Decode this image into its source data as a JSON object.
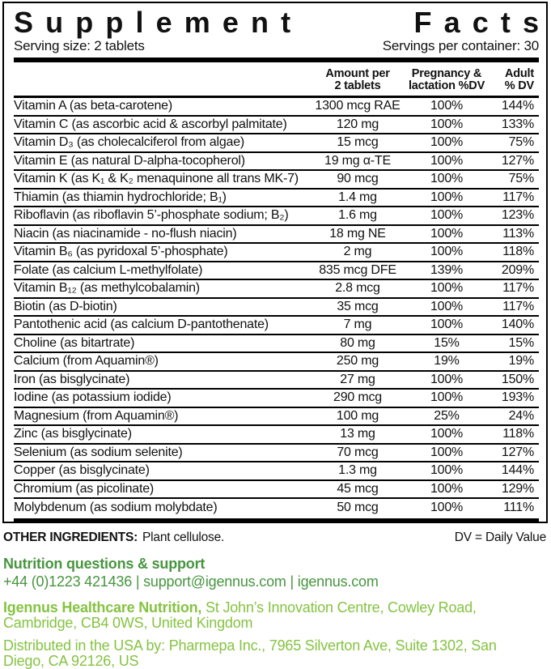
{
  "header": {
    "title_word1": "Supplement",
    "title_word2": "Facts",
    "serving_size": "Serving size: 2 tablets",
    "servings_per_container": "Servings per container: 30"
  },
  "columns": {
    "amount_line1": "Amount per",
    "amount_line2": "2 tablets",
    "pregnancy_line1": "Pregnancy &",
    "pregnancy_line2": "lactation %DV",
    "adult_line1": "Adult",
    "adult_line2": "% DV"
  },
  "rows": [
    {
      "name": "Vitamin A (as beta-carotene)",
      "amount": "1300 mcg RAE",
      "pregnancy_dv": "100%",
      "adult_dv": "144%"
    },
    {
      "name": "Vitamin C (as ascorbic acid & ascorbyl palmitate)",
      "amount": "120 mg",
      "pregnancy_dv": "100%",
      "adult_dv": "133%"
    },
    {
      "name": "Vitamin D₃ (as cholecalciferol from algae)",
      "amount": "15 mcg",
      "pregnancy_dv": "100%",
      "adult_dv": "75%"
    },
    {
      "name": "Vitamin E (as natural D-alpha-tocopherol)",
      "amount": "19 mg α-TE",
      "pregnancy_dv": "100%",
      "adult_dv": "127%"
    },
    {
      "name": "Vitamin K (as K₁ & K₂ menaquinone all trans MK-7)",
      "amount": "90 mcg",
      "pregnancy_dv": "100%",
      "adult_dv": "75%"
    },
    {
      "name": "Thiamin (as thiamin hydrochloride; B₁)",
      "amount": "1.4 mg",
      "pregnancy_dv": "100%",
      "adult_dv": "117%"
    },
    {
      "name": "Riboflavin (as riboflavin 5’-phosphate sodium; B₂)",
      "amount": "1.6 mg",
      "pregnancy_dv": "100%",
      "adult_dv": "123%"
    },
    {
      "name": "Niacin (as niacinamide - no-flush niacin)",
      "amount": "18 mg NE",
      "pregnancy_dv": "100%",
      "adult_dv": "113%"
    },
    {
      "name": "Vitamin B₆ (as pyridoxal 5’-phosphate)",
      "amount": "2 mg",
      "pregnancy_dv": "100%",
      "adult_dv": "118%"
    },
    {
      "name": "Folate (as calcium L-methylfolate)",
      "amount": "835 mcg DFE",
      "pregnancy_dv": "139%",
      "adult_dv": "209%"
    },
    {
      "name": "Vitamin B₁₂ (as methylcobalamin)",
      "amount": "2.8 mcg",
      "pregnancy_dv": "100%",
      "adult_dv": "117%"
    },
    {
      "name": "Biotin (as D-biotin)",
      "amount": "35 mcg",
      "pregnancy_dv": "100%",
      "adult_dv": "117%"
    },
    {
      "name": "Pantothenic acid (as calcium D-pantothenate)",
      "amount": "7 mg",
      "pregnancy_dv": "100%",
      "adult_dv": "140%"
    },
    {
      "name": "Choline (as bitartrate)",
      "amount": "80 mg",
      "pregnancy_dv": "15%",
      "adult_dv": "15%"
    },
    {
      "name": "Calcium (from Aquamin®)",
      "amount": "250 mg",
      "pregnancy_dv": "19%",
      "adult_dv": "19%"
    },
    {
      "name": "Iron (as bisglycinate)",
      "amount": "27 mg",
      "pregnancy_dv": "100%",
      "adult_dv": "150%"
    },
    {
      "name": "Iodine (as potassium iodide)",
      "amount": "290 mcg",
      "pregnancy_dv": "100%",
      "adult_dv": "193%"
    },
    {
      "name": "Magnesium (from Aquamin®)",
      "amount": "100 mg",
      "pregnancy_dv": "25%",
      "adult_dv": "24%"
    },
    {
      "name": "Zinc (as bisglycinate)",
      "amount": "13 mg",
      "pregnancy_dv": "100%",
      "adult_dv": "118%"
    },
    {
      "name": "Selenium (as sodium selenite)",
      "amount": "70 mcg",
      "pregnancy_dv": "100%",
      "adult_dv": "127%"
    },
    {
      "name": "Copper (as bisglycinate)",
      "amount": "1.3 mg",
      "pregnancy_dv": "100%",
      "adult_dv": "144%"
    },
    {
      "name": "Chromium (as picolinate)",
      "amount": "45 mcg",
      "pregnancy_dv": "100%",
      "adult_dv": "129%"
    },
    {
      "name": "Molybdenum (as sodium molybdate)",
      "amount": "50 mcg",
      "pregnancy_dv": "100%",
      "adult_dv": "111%"
    }
  ],
  "footer": {
    "other_ingredients_label": "OTHER INGREDIENTS:",
    "other_ingredients_value": "Plant cellulose.",
    "dv_note": "DV = Daily Value"
  },
  "contact": {
    "heading": "Nutrition questions & support",
    "line": "+44 (0)1223 421436 | support@igennus.com | igennus.com",
    "company_bold": "Igennus Healthcare Nutrition,",
    "company_rest": " St John’s Innovation Centre, Cowley Road, Cambridge, CB4 0WS, United Kingdom",
    "distributor": "Distributed in the USA by: Pharmepa Inc., 7965 Silverton Ave, Suite 1302, San Diego, CA 92126, US"
  },
  "colors": {
    "green_dark": "#47953F",
    "green_light": "#85C341",
    "line_black": "#000000"
  }
}
